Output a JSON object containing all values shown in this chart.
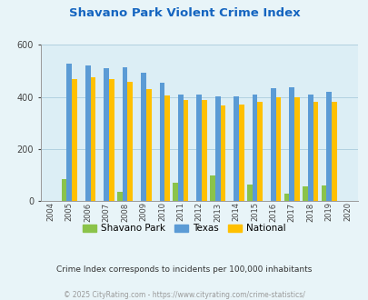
{
  "title": "Shavano Park Violent Crime Index",
  "years": [
    2004,
    2005,
    2006,
    2007,
    2008,
    2009,
    2010,
    2011,
    2012,
    2013,
    2014,
    2015,
    2016,
    2017,
    2018,
    2019,
    2020
  ],
  "shavano_park": [
    0,
    85,
    0,
    0,
    35,
    0,
    0,
    70,
    0,
    100,
    0,
    65,
    0,
    30,
    55,
    60,
    0
  ],
  "texas": [
    0,
    530,
    520,
    510,
    515,
    495,
    455,
    410,
    410,
    402,
    403,
    410,
    435,
    438,
    408,
    420,
    0
  ],
  "national": [
    0,
    470,
    475,
    468,
    458,
    430,
    405,
    390,
    390,
    368,
    372,
    383,
    400,
    398,
    380,
    380,
    0
  ],
  "bar_color_shavano": "#8bc34a",
  "bar_color_texas": "#5b9bd5",
  "bar_color_national": "#ffc000",
  "bg_color": "#e8f4f8",
  "plot_bg": "#dceef5",
  "title_color": "#1565c0",
  "ylim": [
    0,
    600
  ],
  "yticks": [
    0,
    200,
    400,
    600
  ],
  "footer_text1": "Crime Index corresponds to incidents per 100,000 inhabitants",
  "footer_text2": "© 2025 CityRating.com - https://www.cityrating.com/crime-statistics/",
  "legend_labels": [
    "Shavano Park",
    "Texas",
    "National"
  ],
  "bar_width": 0.28
}
